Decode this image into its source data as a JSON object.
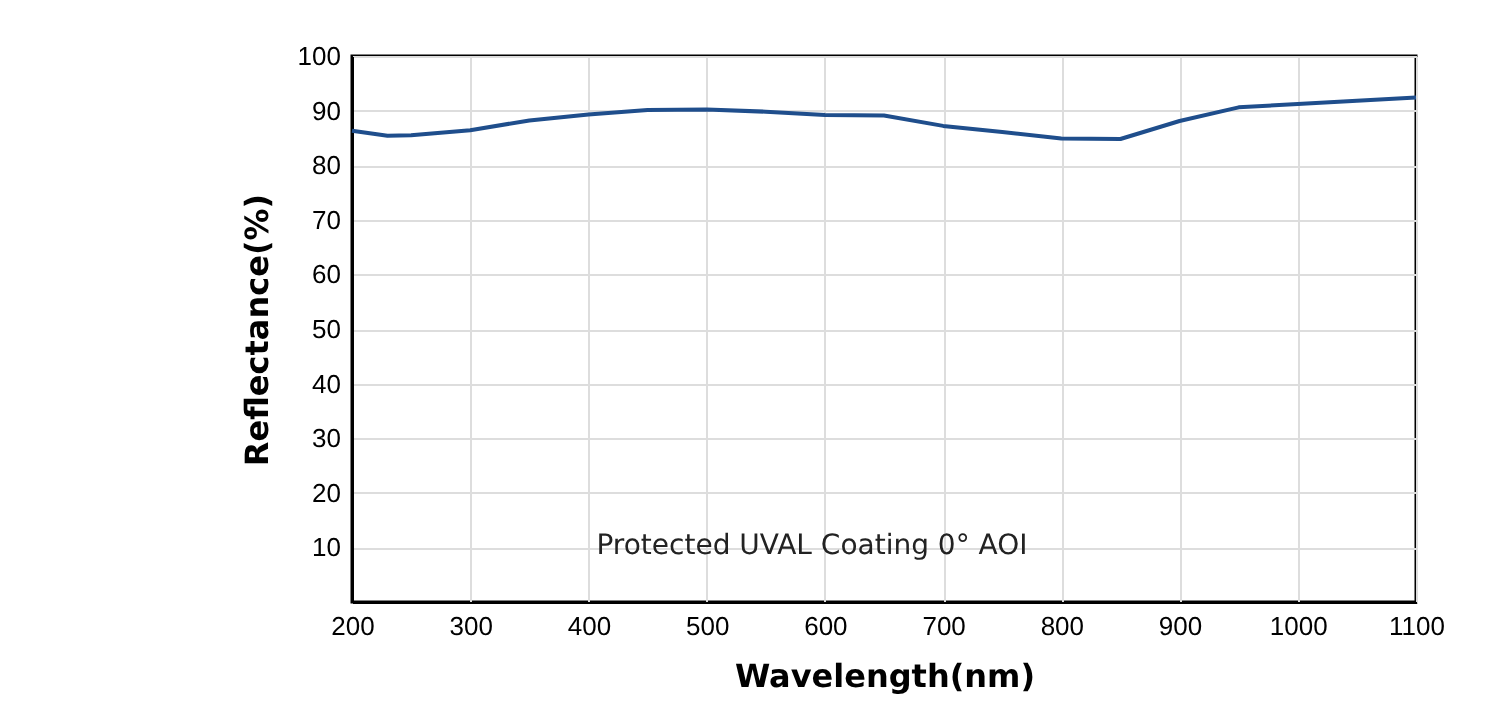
{
  "chart_data": {
    "type": "line",
    "xlabel": "Wavelength(nm)",
    "ylabel": "Reflectance(%)",
    "annotations": [
      "Protected UVAL Coating  0°  AOI"
    ],
    "x": [
      200,
      230,
      250,
      300,
      350,
      400,
      450,
      500,
      550,
      600,
      650,
      700,
      750,
      800,
      850,
      900,
      950,
      1000,
      1050,
      1100
    ],
    "series": [
      {
        "color": "#1f4e8c",
        "values": [
          86.3,
          85.4,
          85.5,
          86.4,
          88.2,
          89.3,
          90.1,
          90.2,
          89.8,
          89.2,
          89.1,
          87.2,
          86.1,
          84.9,
          84.8,
          88.1,
          90.6,
          91.2,
          91.8,
          92.4
        ]
      }
    ],
    "xlim": [
      200,
      1100
    ],
    "xticks": [
      200,
      300,
      400,
      500,
      600,
      700,
      800,
      900,
      1000,
      1100
    ],
    "ylim": [
      0,
      100
    ],
    "yticks": [
      10,
      20,
      30,
      40,
      50,
      60,
      70,
      80,
      90,
      100
    ],
    "grid": true,
    "marker": "none",
    "line_style": "solid"
  }
}
